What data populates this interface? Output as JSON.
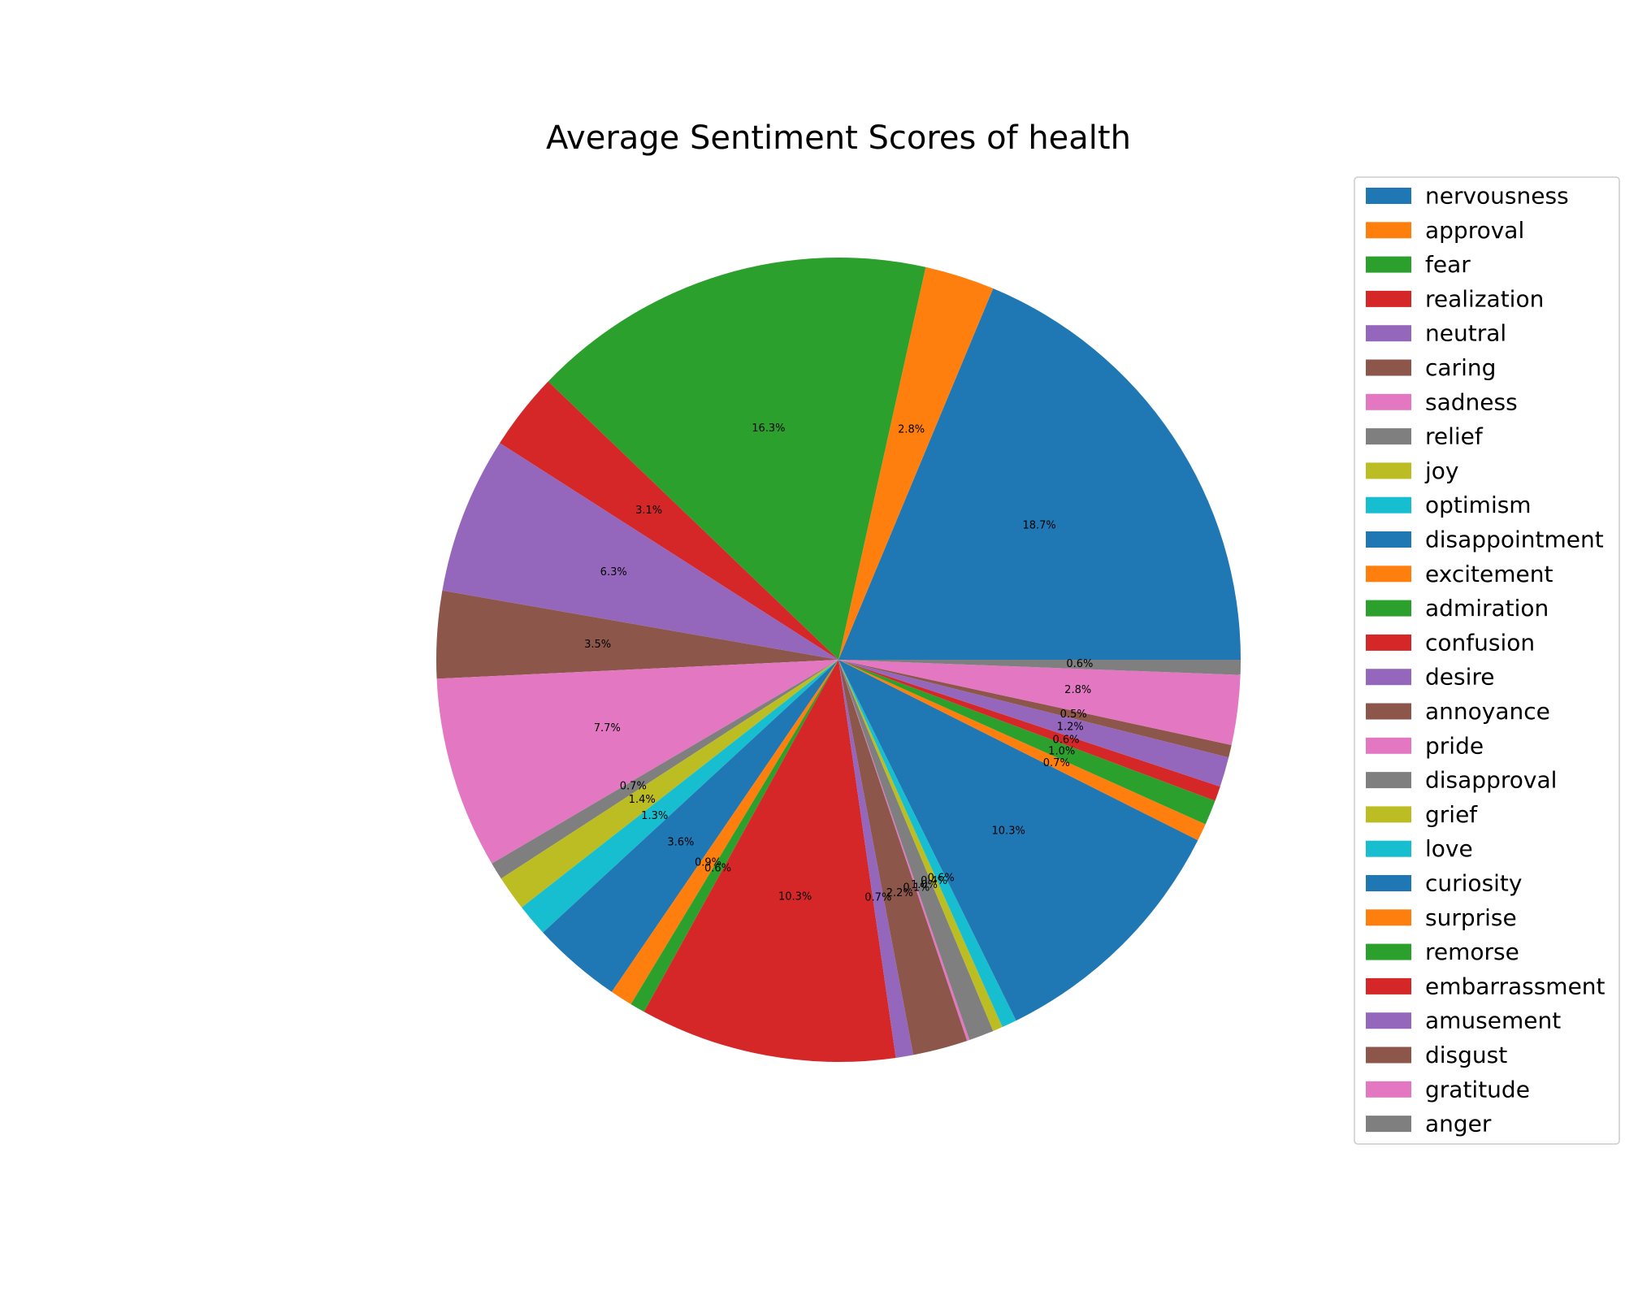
{
  "chart_data": {
    "type": "pie",
    "title": "Average Sentiment Scores of health",
    "legend_position": "right",
    "slices": [
      {
        "label": "nervousness",
        "value": 18.7,
        "pct_label": "18.7%",
        "color": "#1f77b4"
      },
      {
        "label": "approval",
        "value": 2.8,
        "pct_label": "2.8%",
        "color": "#ff7f0e"
      },
      {
        "label": "fear",
        "value": 16.3,
        "pct_label": "16.3%",
        "color": "#2ca02c"
      },
      {
        "label": "realization",
        "value": 3.1,
        "pct_label": "3.1%",
        "color": "#d62728"
      },
      {
        "label": "neutral",
        "value": 6.3,
        "pct_label": "6.3%",
        "color": "#9467bd"
      },
      {
        "label": "caring",
        "value": 3.5,
        "pct_label": "3.5%",
        "color": "#8c564b"
      },
      {
        "label": "sadness",
        "value": 7.7,
        "pct_label": "7.7%",
        "color": "#e377c2"
      },
      {
        "label": "relief",
        "value": 0.7,
        "pct_label": "0.7%",
        "color": "#7f7f7f"
      },
      {
        "label": "joy",
        "value": 1.4,
        "pct_label": "1.4%",
        "color": "#bcbd22"
      },
      {
        "label": "optimism",
        "value": 1.3,
        "pct_label": "1.3%",
        "color": "#17becf"
      },
      {
        "label": "disappointment",
        "value": 3.6,
        "pct_label": "3.6%",
        "color": "#1f77b4"
      },
      {
        "label": "excitement",
        "value": 0.9,
        "pct_label": "0.9%",
        "color": "#ff7f0e"
      },
      {
        "label": "admiration",
        "value": 0.6,
        "pct_label": "0.6%",
        "color": "#2ca02c"
      },
      {
        "label": "confusion",
        "value": 10.3,
        "pct_label": "10.3%",
        "color": "#d62728"
      },
      {
        "label": "desire",
        "value": 0.7,
        "pct_label": "0.7%",
        "color": "#9467bd"
      },
      {
        "label": "annoyance",
        "value": 2.2,
        "pct_label": "2.2%",
        "color": "#8c564b"
      },
      {
        "label": "pride",
        "value": 0.1,
        "pct_label": "0.1%",
        "color": "#e377c2"
      },
      {
        "label": "disapproval",
        "value": 1.0,
        "pct_label": "1.0%",
        "color": "#7f7f7f"
      },
      {
        "label": "grief",
        "value": 0.4,
        "pct_label": "0.4%",
        "color": "#bcbd22"
      },
      {
        "label": "love",
        "value": 0.6,
        "pct_label": "0.6%",
        "color": "#17becf"
      },
      {
        "label": "curiosity",
        "value": 10.3,
        "pct_label": "10.3%",
        "color": "#1f77b4"
      },
      {
        "label": "surprise",
        "value": 0.7,
        "pct_label": "0.7%",
        "color": "#ff7f0e"
      },
      {
        "label": "remorse",
        "value": 1.0,
        "pct_label": "1.0%",
        "color": "#2ca02c"
      },
      {
        "label": "embarrassment",
        "value": 0.6,
        "pct_label": "0.6%",
        "color": "#d62728"
      },
      {
        "label": "amusement",
        "value": 1.2,
        "pct_label": "1.2%",
        "color": "#9467bd"
      },
      {
        "label": "disgust",
        "value": 0.5,
        "pct_label": "0.5%",
        "color": "#8c564b"
      },
      {
        "label": "gratitude",
        "value": 2.8,
        "pct_label": "2.8%",
        "color": "#e377c2"
      },
      {
        "label": "anger",
        "value": 0.6,
        "pct_label": "0.6%",
        "color": "#7f7f7f"
      }
    ]
  }
}
